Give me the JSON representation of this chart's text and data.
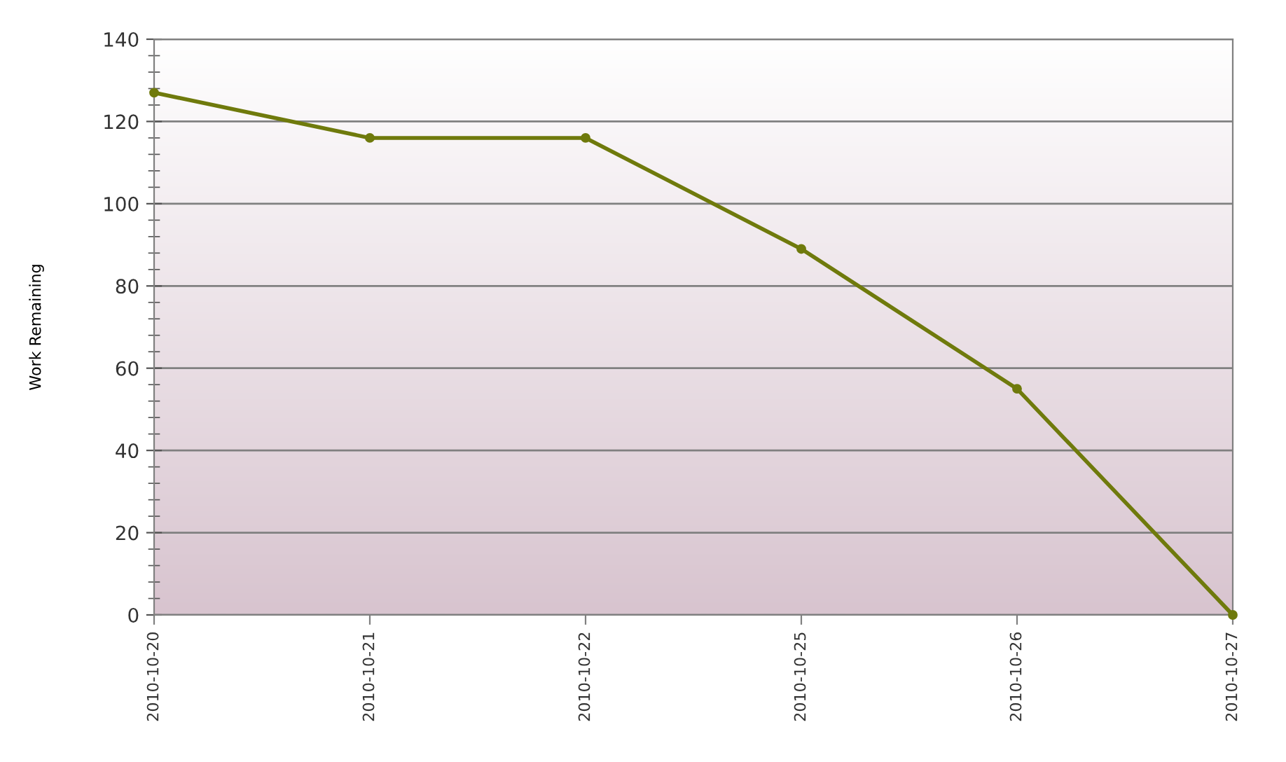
{
  "chart_data": {
    "type": "line",
    "ylabel": "Work Remaining",
    "categories": [
      "2010-10-20",
      "2010-10-21",
      "2010-10-22",
      "2010-10-25",
      "2010-10-26",
      "2010-10-27"
    ],
    "series": [
      {
        "color": "#6f7a0c",
        "values": [
          127,
          116,
          116,
          89,
          55,
          0
        ]
      }
    ],
    "ylim": [
      0,
      140
    ],
    "yticks": [
      0,
      20,
      40,
      60,
      80,
      100,
      120,
      140
    ],
    "grid": "y",
    "marker": "circle",
    "line_style": "solid"
  }
}
